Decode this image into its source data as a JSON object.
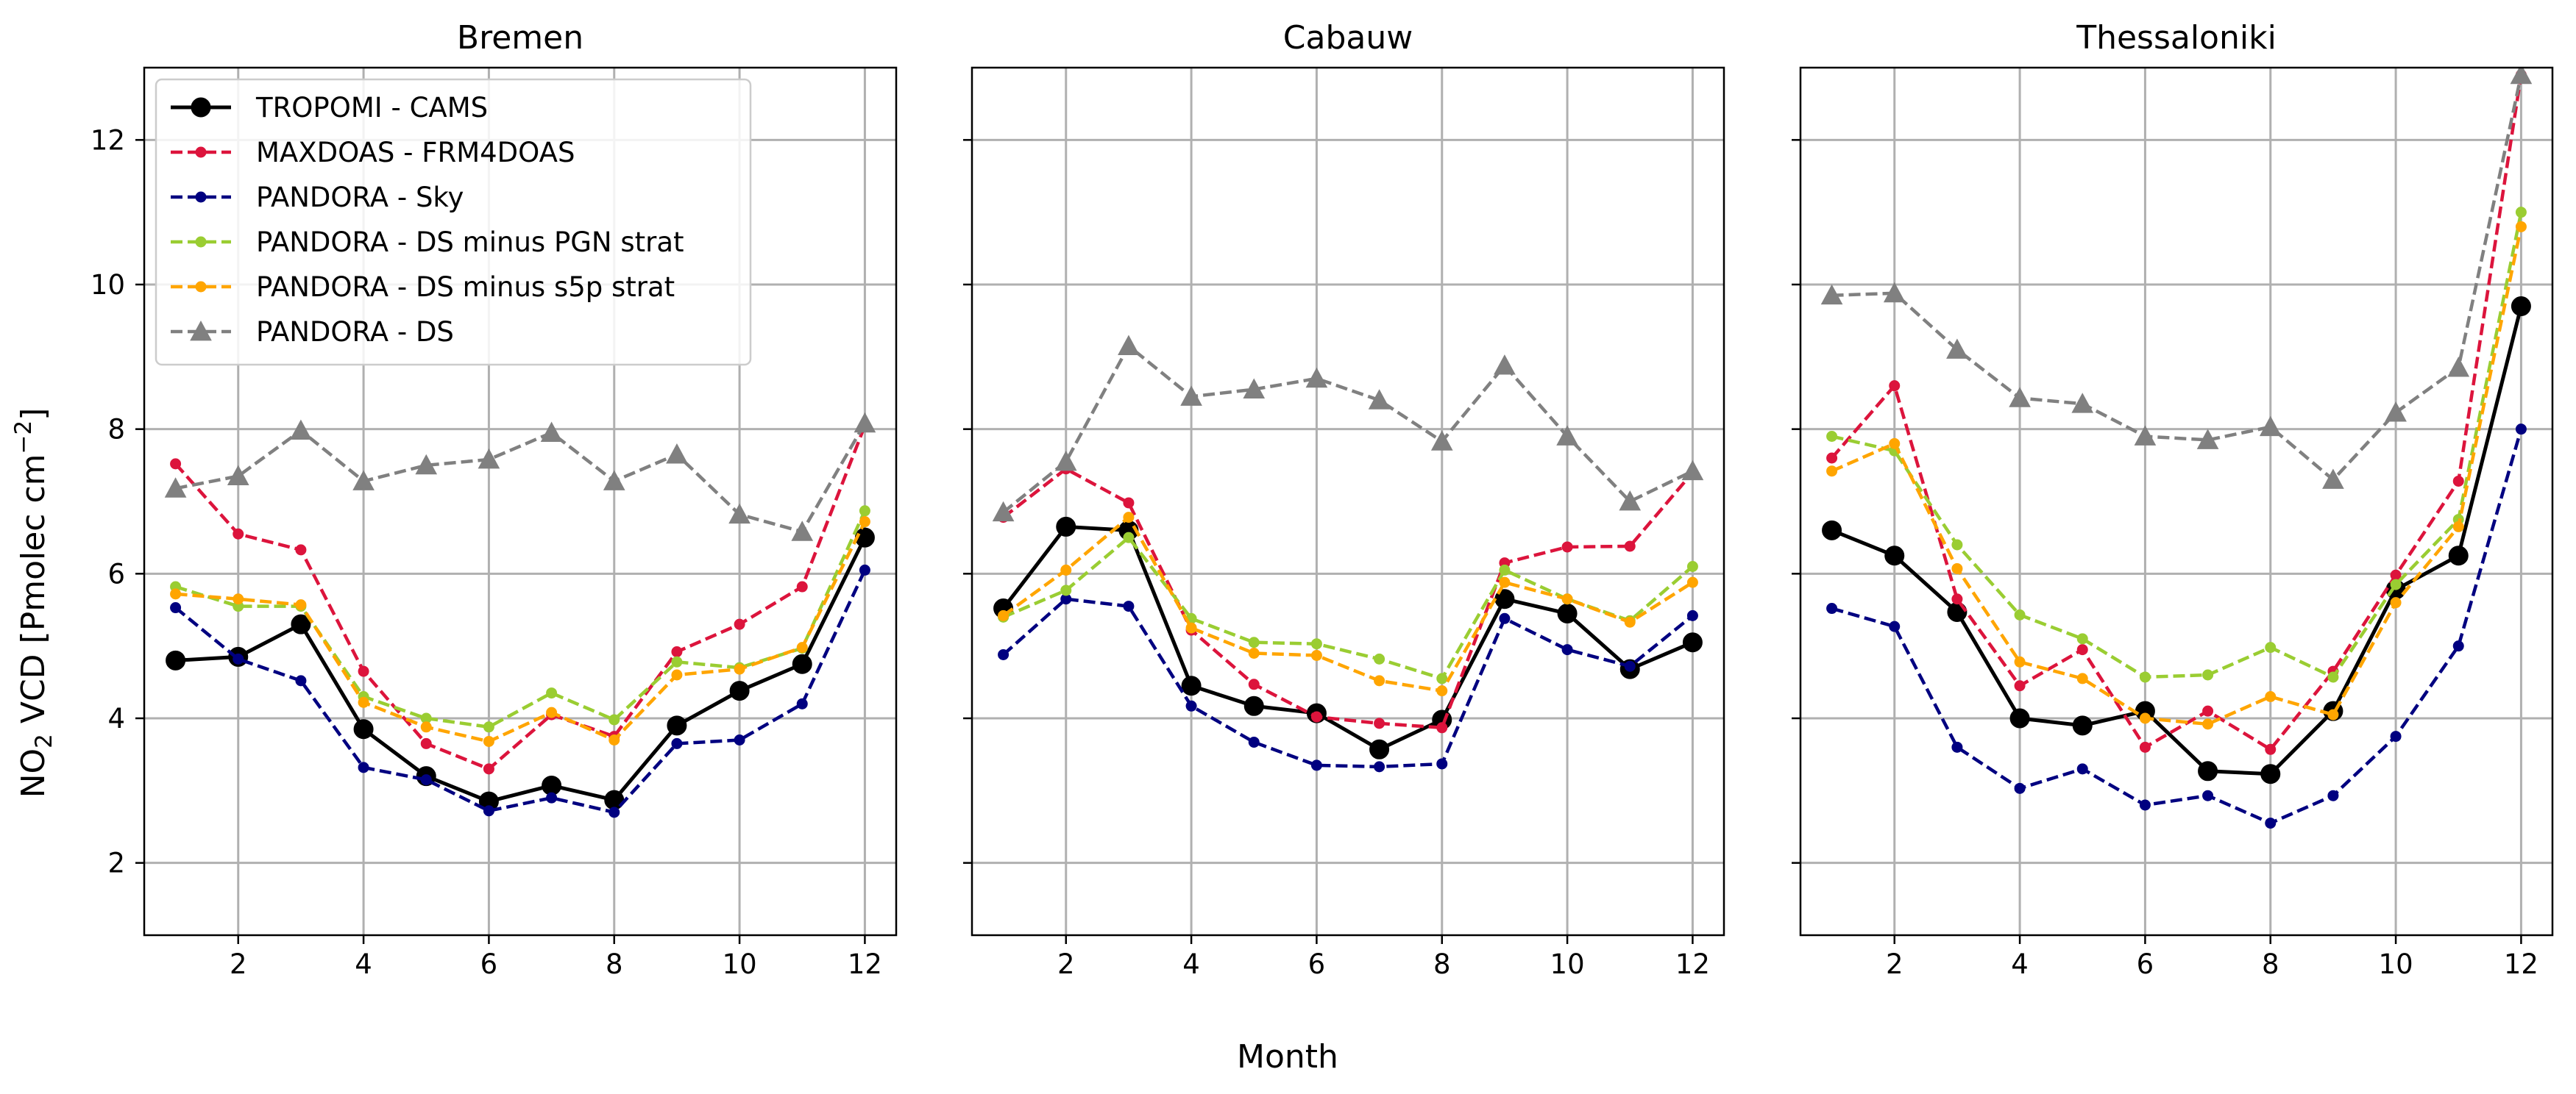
{
  "figure": {
    "ylabel_main": "NO",
    "ylabel_sub": "2",
    "ylabel_rest": " VCD [Pmolec cm",
    "ylabel_sup": "−2",
    "ylabel_end": "]",
    "xlabel": "Month"
  },
  "chart_data": [
    {
      "type": "line",
      "title": "Bremen",
      "xlabel": "Month",
      "ylabel": "NO2 VCD [Pmolec cm−2]",
      "xlim": [
        0.5,
        12.5
      ],
      "ylim": [
        1.0,
        13.0
      ],
      "xticks": [
        2,
        4,
        6,
        8,
        10,
        12
      ],
      "yticks": [
        2,
        4,
        6,
        8,
        10,
        12
      ],
      "grid": true,
      "legend": "upper-left",
      "x": [
        1,
        2,
        3,
        4,
        5,
        6,
        7,
        8,
        9,
        10,
        11,
        12
      ],
      "series": [
        {
          "name": "TROPOMI - CAMS",
          "color": "#000000",
          "dashed": false,
          "marker": "circle-large",
          "values": [
            4.8,
            4.85,
            5.3,
            3.85,
            3.2,
            2.85,
            3.07,
            2.87,
            3.9,
            4.38,
            4.75,
            6.5
          ]
        },
        {
          "name": "MAXDOAS - FRM4DOAS",
          "color": "#dc143c",
          "dashed": true,
          "marker": "circle-small",
          "values": [
            7.52,
            6.55,
            6.33,
            4.65,
            3.65,
            3.3,
            4.05,
            3.75,
            4.92,
            5.3,
            5.82,
            8.05
          ]
        },
        {
          "name": "PANDORA - Sky",
          "color": "#000080",
          "dashed": true,
          "marker": "circle-small",
          "values": [
            5.53,
            4.82,
            4.52,
            3.32,
            3.15,
            2.72,
            2.9,
            2.7,
            3.65,
            3.7,
            4.2,
            6.05
          ]
        },
        {
          "name": "PANDORA - DS minus PGN strat",
          "color": "#9acd32",
          "dashed": true,
          "marker": "circle-small",
          "values": [
            5.82,
            5.55,
            5.55,
            4.3,
            4.0,
            3.88,
            4.35,
            3.98,
            4.78,
            4.7,
            4.97,
            6.87
          ]
        },
        {
          "name": "PANDORA - DS minus s5p strat",
          "color": "#ffa500",
          "dashed": true,
          "marker": "circle-small",
          "values": [
            5.72,
            5.65,
            5.57,
            4.22,
            3.88,
            3.68,
            4.08,
            3.7,
            4.6,
            4.68,
            4.98,
            6.72
          ]
        },
        {
          "name": "PANDORA - DS",
          "color": "#808080",
          "dashed": true,
          "marker": "triangle",
          "values": [
            7.18,
            7.35,
            7.98,
            7.28,
            7.5,
            7.58,
            7.95,
            7.28,
            7.65,
            6.82,
            6.58,
            8.08
          ]
        }
      ]
    },
    {
      "type": "line",
      "title": "Cabauw",
      "xlabel": "Month",
      "ylabel": "NO2 VCD [Pmolec cm−2]",
      "xlim": [
        0.5,
        12.5
      ],
      "ylim": [
        1.0,
        13.0
      ],
      "xticks": [
        2,
        4,
        6,
        8,
        10,
        12
      ],
      "yticks": [
        2,
        4,
        6,
        8,
        10,
        12
      ],
      "grid": true,
      "x": [
        1,
        2,
        3,
        4,
        5,
        6,
        7,
        8,
        9,
        10,
        11,
        12
      ],
      "series": [
        {
          "name": "TROPOMI - CAMS",
          "color": "#000000",
          "dashed": false,
          "marker": "circle-large",
          "values": [
            5.52,
            6.65,
            6.6,
            4.45,
            4.17,
            4.07,
            3.57,
            3.98,
            5.65,
            5.45,
            4.68,
            5.05
          ]
        },
        {
          "name": "MAXDOAS - FRM4DOAS",
          "color": "#dc143c",
          "dashed": true,
          "marker": "circle-small",
          "values": [
            6.78,
            7.45,
            6.98,
            5.22,
            4.47,
            4.02,
            3.93,
            3.87,
            6.15,
            6.37,
            6.38,
            7.4
          ]
        },
        {
          "name": "PANDORA - Sky",
          "color": "#000080",
          "dashed": true,
          "marker": "circle-small",
          "values": [
            4.88,
            5.65,
            5.55,
            4.17,
            3.67,
            3.35,
            3.33,
            3.37,
            5.38,
            4.95,
            4.72,
            5.42
          ]
        },
        {
          "name": "PANDORA - DS minus PGN strat",
          "color": "#9acd32",
          "dashed": true,
          "marker": "circle-small",
          "values": [
            5.4,
            5.77,
            6.5,
            5.38,
            5.05,
            5.03,
            4.82,
            4.55,
            6.05,
            5.65,
            5.35,
            6.1
          ]
        },
        {
          "name": "PANDORA - DS minus s5p strat",
          "color": "#ffa500",
          "dashed": true,
          "marker": "circle-small",
          "values": [
            5.42,
            6.05,
            6.78,
            5.25,
            4.9,
            4.87,
            4.52,
            4.38,
            5.88,
            5.65,
            5.33,
            5.88
          ]
        },
        {
          "name": "PANDORA - DS",
          "color": "#808080",
          "dashed": true,
          "marker": "triangle",
          "values": [
            6.85,
            7.55,
            9.15,
            8.45,
            8.55,
            8.7,
            8.4,
            7.83,
            8.88,
            7.9,
            7.0,
            7.42
          ]
        }
      ]
    },
    {
      "type": "line",
      "title": "Thessaloniki",
      "xlabel": "Month",
      "ylabel": "NO2 VCD [Pmolec cm−2]",
      "xlim": [
        0.5,
        12.5
      ],
      "ylim": [
        1.0,
        13.0
      ],
      "xticks": [
        2,
        4,
        6,
        8,
        10,
        12
      ],
      "yticks": [
        2,
        4,
        6,
        8,
        10,
        12
      ],
      "grid": true,
      "x": [
        1,
        2,
        3,
        4,
        5,
        6,
        7,
        8,
        9,
        10,
        11,
        12
      ],
      "series": [
        {
          "name": "TROPOMI - CAMS",
          "color": "#000000",
          "dashed": false,
          "marker": "circle-large",
          "values": [
            6.6,
            6.25,
            5.47,
            4.0,
            3.9,
            4.1,
            3.27,
            3.23,
            4.1,
            5.78,
            6.25,
            9.7
          ]
        },
        {
          "name": "MAXDOAS - FRM4DOAS",
          "color": "#dc143c",
          "dashed": true,
          "marker": "circle-small",
          "values": [
            7.6,
            8.6,
            5.65,
            4.45,
            4.95,
            3.6,
            4.1,
            3.57,
            4.65,
            5.98,
            7.28,
            12.9
          ]
        },
        {
          "name": "PANDORA - Sky",
          "color": "#000080",
          "dashed": true,
          "marker": "circle-small",
          "values": [
            5.52,
            5.27,
            3.6,
            3.03,
            3.3,
            2.8,
            2.93,
            2.55,
            2.93,
            3.75,
            5.0,
            8.0
          ]
        },
        {
          "name": "PANDORA - DS minus PGN strat",
          "color": "#9acd32",
          "dashed": true,
          "marker": "circle-small",
          "values": [
            7.9,
            7.7,
            6.4,
            5.43,
            5.1,
            4.57,
            4.6,
            4.98,
            4.57,
            5.85,
            6.75,
            11.0
          ]
        },
        {
          "name": "PANDORA - DS minus s5p strat",
          "color": "#ffa500",
          "dashed": true,
          "marker": "circle-small",
          "values": [
            7.42,
            7.8,
            6.07,
            4.78,
            4.55,
            4.0,
            3.92,
            4.3,
            4.05,
            5.6,
            6.65,
            10.8
          ]
        },
        {
          "name": "PANDORA - DS",
          "color": "#808080",
          "dashed": true,
          "marker": "triangle",
          "values": [
            9.85,
            9.88,
            9.1,
            8.43,
            8.35,
            7.9,
            7.85,
            8.03,
            7.3,
            8.23,
            8.85,
            12.9
          ]
        }
      ]
    }
  ]
}
